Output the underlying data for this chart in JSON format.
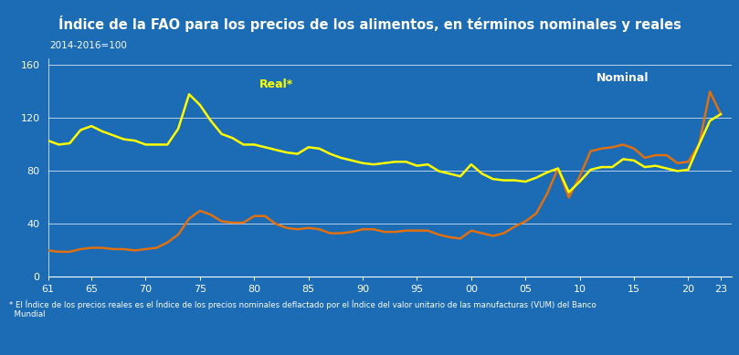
{
  "title": "Índice de la FAO para los precios de los alimentos, en términos nominales y reales",
  "subtitle": "2014-2016=100",
  "footnote": "* El Índice de los precios reales es el Índice de los precios nominales deflactado por el Índice del valor unitario de las manufacturas (VUM) del Banco\n  Mundial",
  "bg_color": "#1B6BB5",
  "title_bg": "#1A3F7A",
  "grid_color": "#FFFFFF",
  "ylim": [
    0,
    165
  ],
  "yticks": [
    0,
    40,
    80,
    120,
    160
  ],
  "xtick_positions": [
    61,
    65,
    70,
    75,
    80,
    85,
    90,
    95,
    100,
    105,
    110,
    115,
    120,
    123
  ],
  "xtick_labels": [
    "61",
    "65",
    "70",
    "75",
    "80",
    "85",
    "90",
    "95",
    "00",
    "05",
    "10",
    "15",
    "20",
    "23"
  ],
  "real_color": "#FFFF00",
  "nominal_color": "#E07010",
  "real_label": "Real*",
  "nominal_label": "Nominal",
  "real_x": [
    61,
    62,
    63,
    64,
    65,
    66,
    67,
    68,
    69,
    70,
    71,
    72,
    73,
    74,
    75,
    76,
    77,
    78,
    79,
    80,
    81,
    82,
    83,
    84,
    85,
    86,
    87,
    88,
    89,
    90,
    91,
    92,
    93,
    94,
    95,
    96,
    97,
    98,
    99,
    100,
    101,
    102,
    103,
    104,
    105,
    106,
    107,
    108,
    109,
    110,
    111,
    112,
    113,
    114,
    115,
    116,
    117,
    118,
    119,
    120,
    121,
    122,
    123
  ],
  "real_y": [
    103,
    100,
    101,
    111,
    114,
    110,
    107,
    104,
    103,
    100,
    100,
    100,
    112,
    138,
    130,
    118,
    108,
    105,
    100,
    100,
    98,
    96,
    94,
    93,
    98,
    97,
    93,
    90,
    88,
    86,
    85,
    86,
    87,
    87,
    84,
    85,
    80,
    78,
    76,
    85,
    78,
    74,
    73,
    73,
    72,
    75,
    79,
    82,
    64,
    72,
    81,
    83,
    83,
    89,
    88,
    83,
    84,
    82,
    80,
    81,
    100,
    118,
    123
  ],
  "nominal_x": [
    61,
    62,
    63,
    64,
    65,
    66,
    67,
    68,
    69,
    70,
    71,
    72,
    73,
    74,
    75,
    76,
    77,
    78,
    79,
    80,
    81,
    82,
    83,
    84,
    85,
    86,
    87,
    88,
    89,
    90,
    91,
    92,
    93,
    94,
    95,
    96,
    97,
    98,
    99,
    100,
    101,
    102,
    103,
    104,
    105,
    106,
    107,
    108,
    109,
    110,
    111,
    112,
    113,
    114,
    115,
    116,
    117,
    118,
    119,
    120,
    121,
    122,
    123
  ],
  "nominal_y": [
    20,
    19,
    19,
    21,
    22,
    22,
    21,
    21,
    20,
    21,
    22,
    26,
    32,
    44,
    50,
    47,
    42,
    41,
    41,
    46,
    46,
    40,
    37,
    36,
    37,
    36,
    33,
    33,
    34,
    36,
    36,
    34,
    34,
    35,
    35,
    35,
    32,
    30,
    29,
    35,
    33,
    31,
    33,
    38,
    42,
    48,
    63,
    82,
    60,
    76,
    95,
    97,
    98,
    100,
    97,
    90,
    92,
    92,
    86,
    87,
    100,
    140,
    123
  ]
}
